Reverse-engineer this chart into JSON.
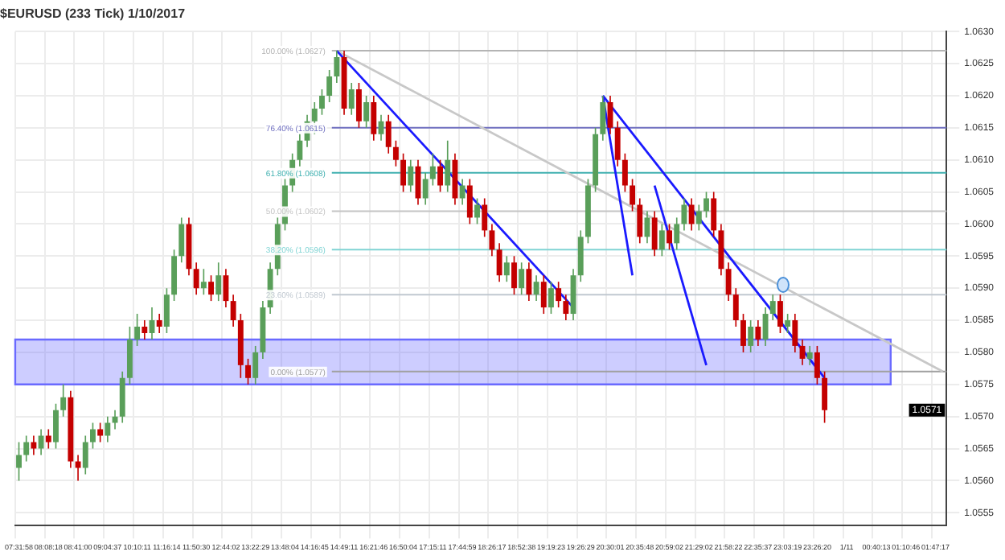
{
  "chart_data": {
    "type": "candlestick",
    "title": "$EURUSD (233 Tick) 1/10/2017",
    "categories": [
      "07:31:58",
      null,
      null,
      null,
      "08:08:18",
      null,
      null,
      null,
      "08:41:00",
      null,
      null,
      null,
      "09:04:37",
      null,
      null,
      null,
      "10:10:11",
      null,
      null,
      null,
      "11:16:14",
      null,
      null,
      null,
      "11:50:30",
      null,
      null,
      null,
      "12:44:02",
      null,
      null,
      null,
      "13:22:29",
      null,
      null,
      null,
      "13:48:04",
      null,
      null,
      null,
      "14:16:45",
      null,
      null,
      null,
      "14:49:11",
      null,
      null,
      null,
      "16:21:46",
      null,
      null,
      null,
      "16:50:04",
      null,
      null,
      null,
      "17:15:11",
      null,
      null,
      null,
      "17:44:59",
      null,
      null,
      null,
      "18:26:17",
      null,
      null,
      null,
      "18:52:38",
      null,
      null,
      null,
      "19:19:23",
      null,
      null,
      null,
      "19:26:29",
      null,
      null,
      null,
      "20:30:01",
      null,
      null,
      null,
      "20:35:48",
      null,
      null,
      null,
      "20:59:02",
      null,
      null,
      null,
      "21:29:02",
      null,
      null,
      null,
      "21:58:22",
      null,
      null,
      null,
      "22:35:37",
      null,
      null,
      null,
      "23:03:19",
      null,
      null,
      null,
      "23:26:20",
      null,
      null,
      null,
      "1/11",
      null,
      null,
      null,
      "00:40:13",
      null,
      null,
      null,
      "01:10:46",
      null,
      null,
      null,
      "01:47:17",
      null
    ],
    "ohlc": [
      [
        1.0562,
        1.0566,
        1.056,
        1.0564
      ],
      [
        1.0564,
        1.0567,
        1.0563,
        1.0566
      ],
      [
        1.0566,
        1.0567,
        1.0564,
        1.0565
      ],
      [
        1.0565,
        1.0568,
        1.0564,
        1.0567
      ],
      [
        1.0567,
        1.0568,
        1.0565,
        1.0566
      ],
      [
        1.0566,
        1.0572,
        1.0565,
        1.0571
      ],
      [
        1.0571,
        1.0575,
        1.057,
        1.0573
      ],
      [
        1.0573,
        1.0574,
        1.0562,
        1.0563
      ],
      [
        1.0563,
        1.0564,
        1.056,
        1.0562
      ],
      [
        1.0562,
        1.0567,
        1.0561,
        1.0566
      ],
      [
        1.0566,
        1.0569,
        1.0565,
        1.0568
      ],
      [
        1.0568,
        1.0569,
        1.0566,
        1.0567
      ],
      [
        1.0567,
        1.057,
        1.0566,
        1.0569
      ],
      [
        1.0569,
        1.0571,
        1.0568,
        1.057
      ],
      [
        1.057,
        1.0577,
        1.0569,
        1.0576
      ],
      [
        1.0576,
        1.0584,
        1.0575,
        1.0582
      ],
      [
        1.0582,
        1.0586,
        1.0581,
        1.0584
      ],
      [
        1.0584,
        1.0585,
        1.0582,
        1.0583
      ],
      [
        1.0583,
        1.0587,
        1.0582,
        1.0585
      ],
      [
        1.0585,
        1.0586,
        1.0583,
        1.0584
      ],
      [
        1.0584,
        1.059,
        1.0583,
        1.0589
      ],
      [
        1.0589,
        1.0596,
        1.0588,
        1.0595
      ],
      [
        1.0595,
        1.0601,
        1.0594,
        1.06
      ],
      [
        1.06,
        1.0601,
        1.0592,
        1.0593
      ],
      [
        1.0593,
        1.0594,
        1.0589,
        1.059
      ],
      [
        1.059,
        1.0593,
        1.0589,
        1.0591
      ],
      [
        1.0591,
        1.0592,
        1.0588,
        1.0589
      ],
      [
        1.0589,
        1.0594,
        1.0588,
        1.0592
      ],
      [
        1.0592,
        1.0593,
        1.0587,
        1.0588
      ],
      [
        1.0588,
        1.0589,
        1.0584,
        1.0585
      ],
      [
        1.0585,
        1.0586,
        1.0576,
        1.0578
      ],
      [
        1.0578,
        1.0579,
        1.0575,
        1.0576
      ],
      [
        1.0576,
        1.0581,
        1.0575,
        1.058
      ],
      [
        1.058,
        1.0588,
        1.0579,
        1.0587
      ],
      [
        1.0587,
        1.0594,
        1.0586,
        1.0593
      ],
      [
        1.0593,
        1.0601,
        1.0592,
        1.06
      ],
      [
        1.06,
        1.0607,
        1.0599,
        1.0606
      ],
      [
        1.0606,
        1.0611,
        1.0605,
        1.061
      ],
      [
        1.061,
        1.0614,
        1.0609,
        1.0613
      ],
      [
        1.0613,
        1.0617,
        1.0612,
        1.0616
      ],
      [
        1.0616,
        1.0619,
        1.0614,
        1.0618
      ],
      [
        1.0618,
        1.0621,
        1.0617,
        1.062
      ],
      [
        1.062,
        1.0624,
        1.0619,
        1.0623
      ],
      [
        1.0623,
        1.0627,
        1.0622,
        1.0626
      ],
      [
        1.0626,
        1.0627,
        1.0617,
        1.0618
      ],
      [
        1.0618,
        1.0622,
        1.0617,
        1.0621
      ],
      [
        1.0621,
        1.0622,
        1.0615,
        1.0616
      ],
      [
        1.0616,
        1.062,
        1.0615,
        1.0619
      ],
      [
        1.0619,
        1.062,
        1.0613,
        1.0614
      ],
      [
        1.0614,
        1.0617,
        1.0613,
        1.0616
      ],
      [
        1.0616,
        1.0617,
        1.0611,
        1.0612
      ],
      [
        1.0612,
        1.0613,
        1.0609,
        1.061
      ],
      [
        1.061,
        1.0611,
        1.0605,
        1.0606
      ],
      [
        1.0606,
        1.061,
        1.0605,
        1.0609
      ],
      [
        1.0609,
        1.061,
        1.0603,
        1.0604
      ],
      [
        1.0604,
        1.0608,
        1.0603,
        1.0607
      ],
      [
        1.0607,
        1.0611,
        1.0606,
        1.0609
      ],
      [
        1.0609,
        1.061,
        1.0605,
        1.0606
      ],
      [
        1.0606,
        1.0613,
        1.0605,
        1.061
      ],
      [
        1.061,
        1.0611,
        1.0603,
        1.0604
      ],
      [
        1.0604,
        1.0607,
        1.0603,
        1.0606
      ],
      [
        1.0606,
        1.0607,
        1.06,
        1.0601
      ],
      [
        1.0601,
        1.0604,
        1.06,
        1.0603
      ],
      [
        1.0603,
        1.0604,
        1.0598,
        1.0599
      ],
      [
        1.0599,
        1.06,
        1.0595,
        1.0596
      ],
      [
        1.0596,
        1.0597,
        1.0591,
        1.0592
      ],
      [
        1.0592,
        1.0595,
        1.0591,
        1.0594
      ],
      [
        1.0594,
        1.0595,
        1.0589,
        1.059
      ],
      [
        1.059,
        1.0594,
        1.0589,
        1.0593
      ],
      [
        1.0593,
        1.0594,
        1.0588,
        1.0589
      ],
      [
        1.0589,
        1.0592,
        1.0588,
        1.0591
      ],
      [
        1.0591,
        1.0592,
        1.0586,
        1.0587
      ],
      [
        1.0587,
        1.0591,
        1.0586,
        1.059
      ],
      [
        1.059,
        1.0591,
        1.0587,
        1.0588
      ],
      [
        1.0588,
        1.0589,
        1.0585,
        1.0586
      ],
      [
        1.0586,
        1.0593,
        1.0585,
        1.0592
      ],
      [
        1.0592,
        1.0599,
        1.0591,
        1.0598
      ],
      [
        1.0598,
        1.0607,
        1.0597,
        1.0606
      ],
      [
        1.0606,
        1.0615,
        1.0605,
        1.0614
      ],
      [
        1.0614,
        1.062,
        1.0613,
        1.0619
      ],
      [
        1.0619,
        1.062,
        1.0614,
        1.0615
      ],
      [
        1.0615,
        1.0616,
        1.0609,
        1.061
      ],
      [
        1.061,
        1.0611,
        1.0605,
        1.0606
      ],
      [
        1.0606,
        1.0607,
        1.0602,
        1.0603
      ],
      [
        1.0603,
        1.0604,
        1.0597,
        1.0598
      ],
      [
        1.0598,
        1.0602,
        1.0597,
        1.0601
      ],
      [
        1.0601,
        1.0602,
        1.0595,
        1.0596
      ],
      [
        1.0596,
        1.06,
        1.0595,
        1.0599
      ],
      [
        1.0599,
        1.06,
        1.0596,
        1.0597
      ],
      [
        1.0597,
        1.0601,
        1.0596,
        1.06
      ],
      [
        1.06,
        1.0604,
        1.0599,
        1.0603
      ],
      [
        1.0603,
        1.0604,
        1.0599,
        1.06
      ],
      [
        1.06,
        1.0603,
        1.0599,
        1.0602
      ],
      [
        1.0602,
        1.0605,
        1.0601,
        1.0604
      ],
      [
        1.0604,
        1.0605,
        1.0598,
        1.0599
      ],
      [
        1.0599,
        1.06,
        1.0592,
        1.0593
      ],
      [
        1.0593,
        1.0594,
        1.0588,
        1.0589
      ],
      [
        1.0589,
        1.059,
        1.0584,
        1.0585
      ],
      [
        1.0585,
        1.0586,
        1.058,
        1.0581
      ],
      [
        1.0581,
        1.0585,
        1.058,
        1.0584
      ],
      [
        1.0584,
        1.0585,
        1.0581,
        1.0582
      ],
      [
        1.0582,
        1.0587,
        1.0581,
        1.0586
      ],
      [
        1.0586,
        1.0589,
        1.0585,
        1.0588
      ],
      [
        1.0588,
        1.0589,
        1.0583,
        1.0584
      ],
      [
        1.0584,
        1.0586,
        1.0583,
        1.0585
      ],
      [
        1.0585,
        1.0586,
        1.058,
        1.0581
      ],
      [
        1.0581,
        1.0582,
        1.0578,
        1.0579
      ],
      [
        1.0579,
        1.0581,
        1.0578,
        1.058
      ],
      [
        1.058,
        1.0581,
        1.0575,
        1.0576
      ],
      [
        1.0576,
        1.0577,
        1.0569,
        1.0571
      ],
      null,
      null,
      null,
      null,
      null,
      null,
      null,
      null,
      null,
      null,
      null,
      null,
      null,
      null,
      null,
      null
    ],
    "series": [
      {
        "type": "line",
        "color": "#1a1aff",
        "values": [
          null,
          null,
          null,
          null,
          null,
          null,
          null,
          null,
          null,
          null,
          null,
          null,
          null,
          null,
          null,
          null,
          null,
          null,
          null,
          null,
          null,
          null,
          null,
          null,
          null,
          null,
          null,
          null,
          null,
          null,
          null,
          null,
          null,
          null,
          null,
          null,
          null,
          null,
          null,
          null,
          null,
          null,
          null,
          1.0627,
          null,
          null,
          null,
          null,
          null,
          null,
          null,
          null,
          null,
          null,
          null,
          null,
          null,
          null,
          null,
          null,
          null,
          null,
          null,
          null,
          null,
          null,
          null,
          null,
          null,
          null,
          null,
          null,
          null,
          null,
          null,
          1.0587,
          null,
          null,
          null,
          null,
          null,
          null,
          null,
          null,
          null,
          null,
          null,
          null,
          null,
          null,
          null,
          null,
          null,
          null,
          null,
          null,
          null,
          null,
          null,
          null,
          null,
          null,
          null,
          null,
          null,
          null,
          null,
          null,
          null,
          null,
          null,
          null,
          null,
          null,
          null,
          null,
          null,
          null,
          null,
          null,
          null,
          null,
          null,
          null,
          null,
          null
        ]
      },
      {
        "type": "line",
        "color": "#1a1aff",
        "values": [
          null,
          null,
          null,
          null,
          null,
          null,
          null,
          null,
          null,
          null,
          null,
          null,
          null,
          null,
          null,
          null,
          null,
          null,
          null,
          null,
          null,
          null,
          null,
          null,
          null,
          null,
          null,
          null,
          null,
          null,
          null,
          null,
          null,
          null,
          null,
          null,
          null,
          null,
          null,
          null,
          null,
          null,
          null,
          null,
          null,
          null,
          null,
          null,
          null,
          null,
          null,
          null,
          null,
          null,
          null,
          null,
          null,
          null,
          null,
          null,
          null,
          null,
          null,
          null,
          null,
          null,
          null,
          null,
          null,
          null,
          null,
          null,
          null,
          null,
          null,
          null,
          null,
          null,
          null,
          1.062,
          null,
          null,
          null,
          null,
          null,
          null,
          null,
          null,
          null,
          null,
          null,
          null,
          null,
          null,
          null,
          null,
          null,
          null,
          null,
          null,
          null,
          null,
          null,
          null,
          null,
          null,
          null,
          null,
          null,
          1.0576,
          null,
          null,
          null,
          null,
          null,
          null,
          null,
          null,
          null,
          null,
          null,
          null,
          null,
          null,
          null,
          null
        ]
      },
      {
        "type": "line",
        "color": "#1a1aff",
        "values": [
          null,
          null,
          null,
          null,
          null,
          null,
          null,
          null,
          null,
          null,
          null,
          null,
          null,
          null,
          null,
          null,
          null,
          null,
          null,
          null,
          null,
          null,
          null,
          null,
          null,
          null,
          null,
          null,
          null,
          null,
          null,
          null,
          null,
          null,
          null,
          null,
          null,
          null,
          null,
          null,
          null,
          null,
          null,
          null,
          null,
          null,
          null,
          null,
          null,
          null,
          null,
          null,
          null,
          null,
          null,
          null,
          null,
          null,
          null,
          null,
          null,
          null,
          null,
          null,
          null,
          null,
          null,
          null,
          null,
          null,
          null,
          null,
          null,
          null,
          null,
          null,
          null,
          null,
          null,
          1.062,
          null,
          null,
          null,
          1.0592,
          null,
          null,
          null,
          null,
          null,
          null,
          null,
          null,
          null,
          null,
          null,
          null,
          null,
          null,
          null,
          null,
          null,
          null,
          null,
          null,
          null,
          null,
          null,
          null,
          null,
          null,
          null,
          null,
          null,
          null,
          null,
          null,
          null,
          null,
          null,
          null,
          null,
          null,
          null,
          null,
          null,
          null
        ]
      },
      {
        "type": "line",
        "color": "#1a1aff",
        "values": [
          null,
          null,
          null,
          null,
          null,
          null,
          null,
          null,
          null,
          null,
          null,
          null,
          null,
          null,
          null,
          null,
          null,
          null,
          null,
          null,
          null,
          null,
          null,
          null,
          null,
          null,
          null,
          null,
          null,
          null,
          null,
          null,
          null,
          null,
          null,
          null,
          null,
          null,
          null,
          null,
          null,
          null,
          null,
          null,
          null,
          null,
          null,
          null,
          null,
          null,
          null,
          null,
          null,
          null,
          null,
          null,
          null,
          null,
          null,
          null,
          null,
          null,
          null,
          null,
          null,
          null,
          null,
          null,
          null,
          null,
          null,
          null,
          null,
          null,
          null,
          null,
          null,
          null,
          null,
          null,
          null,
          null,
          null,
          null,
          null,
          null,
          1.0606,
          null,
          null,
          null,
          null,
          null,
          null,
          1.0578,
          null,
          null,
          null,
          null,
          null,
          null,
          null,
          null,
          null,
          null,
          null,
          null,
          null,
          null,
          null,
          null,
          null,
          null,
          null,
          null,
          null,
          null,
          null,
          null,
          null,
          null,
          null,
          null,
          null,
          null,
          null,
          null
        ]
      },
      {
        "type": "line",
        "color": "#c8c8c8",
        "values": [
          null,
          null,
          null,
          null,
          null,
          null,
          null,
          null,
          null,
          null,
          null,
          null,
          null,
          null,
          null,
          null,
          null,
          null,
          null,
          null,
          null,
          null,
          null,
          null,
          null,
          null,
          null,
          null,
          null,
          null,
          null,
          null,
          null,
          null,
          null,
          null,
          null,
          null,
          null,
          null,
          null,
          null,
          null,
          1.0627,
          null,
          null,
          null,
          null,
          null,
          null,
          null,
          null,
          null,
          null,
          null,
          null,
          null,
          null,
          null,
          null,
          null,
          null,
          null,
          null,
          null,
          null,
          null,
          null,
          null,
          null,
          null,
          null,
          null,
          null,
          null,
          null,
          null,
          null,
          null,
          null,
          null,
          null,
          null,
          null,
          null,
          null,
          null,
          null,
          null,
          null,
          null,
          null,
          null,
          null,
          null,
          null,
          null,
          null,
          null,
          null,
          null,
          null,
          null,
          null,
          null,
          null,
          null,
          null,
          null,
          null,
          null,
          null,
          null,
          null,
          null,
          null,
          null,
          null,
          null,
          null,
          null,
          null,
          null,
          null,
          null,
          1.0577
        ]
      }
    ],
    "ylim": [
      1.0553,
      1.063
    ],
    "yticks": [
      {
        "value": 1.0555,
        "label": "1.0555"
      },
      {
        "value": 1.056,
        "label": "1.0560"
      },
      {
        "value": 1.0565,
        "label": "1.0565"
      },
      {
        "value": 1.057,
        "label": "1.0570"
      },
      {
        "value": 1.0575,
        "label": "1.0575"
      },
      {
        "value": 1.058,
        "label": "1.0580"
      },
      {
        "value": 1.0585,
        "label": "1.0585"
      },
      {
        "value": 1.059,
        "label": "1.0590"
      },
      {
        "value": 1.0595,
        "label": "1.0595"
      },
      {
        "value": 1.06,
        "label": "1.0600"
      },
      {
        "value": 1.0605,
        "label": "1.0605"
      },
      {
        "value": 1.061,
        "label": "1.0610"
      },
      {
        "value": 1.0615,
        "label": "1.0615"
      },
      {
        "value": 1.062,
        "label": "1.0620"
      },
      {
        "value": 1.0625,
        "label": "1.0625"
      },
      {
        "value": 1.063,
        "label": "1.0630"
      }
    ],
    "ref_lines": [
      {
        "axis": "y",
        "value": 1.0627,
        "label": "100.00% (1.0627)",
        "color": "#b4b4b4"
      },
      {
        "axis": "y",
        "value": 1.0615,
        "label": "76.40% (1.0615)",
        "color": "#7070c0"
      },
      {
        "axis": "y",
        "value": 1.0608,
        "label": "61.80% (1.0608)",
        "color": "#40b0b0"
      },
      {
        "axis": "y",
        "value": 1.0602,
        "label": "50.00% (1.0602)",
        "color": "#c4c4c4"
      },
      {
        "axis": "y",
        "value": 1.0596,
        "label": "38.20% (1.0596)",
        "color": "#80d4d4"
      },
      {
        "axis": "y",
        "value": 1.0589,
        "label": "23.60% (1.0589)",
        "color": "#c0c8d0"
      },
      {
        "axis": "y",
        "value": 1.0577,
        "label": "0.00% (1.0577)",
        "color": "#a0a0a0"
      }
    ],
    "bands": [
      {
        "axis": "y",
        "from": 1.0575,
        "to": 1.0582,
        "label": null,
        "color": "#6a6aff"
      }
    ],
    "annotations": [
      {
        "text": "1.0571",
        "y": 1.0571
      }
    ],
    "grid": true,
    "legend": false
  }
}
